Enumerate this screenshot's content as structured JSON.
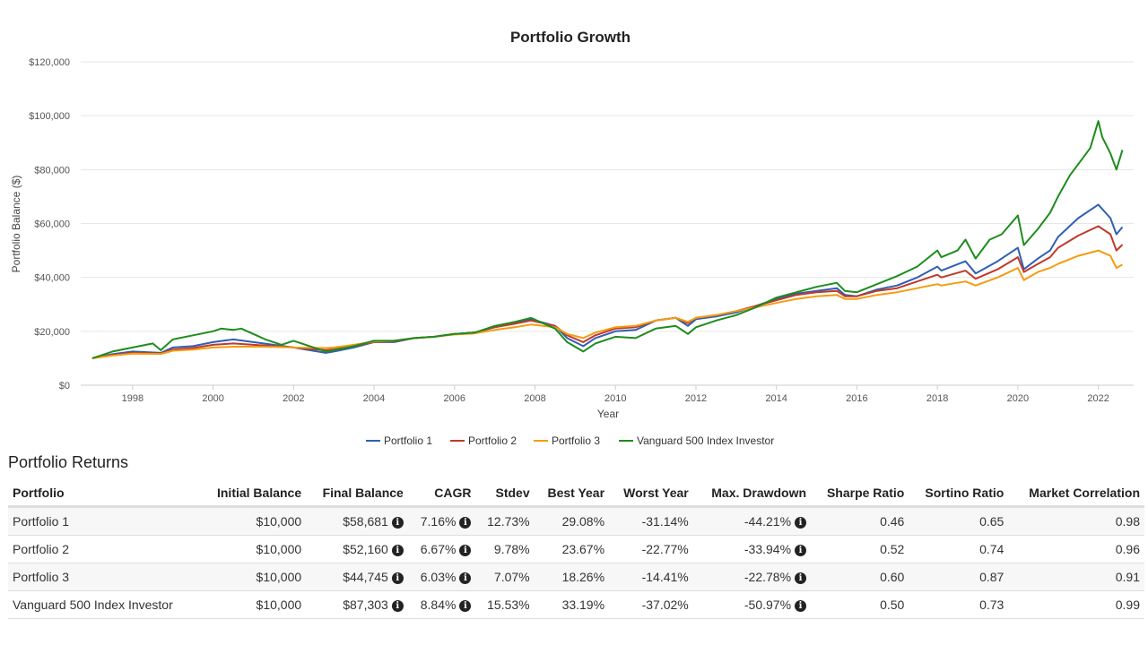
{
  "chart_data": {
    "type": "line",
    "title": "Portfolio Growth",
    "xlabel": "Year",
    "ylabel": "Portfolio Balance ($)",
    "xlim": [
      1997,
      2022.7
    ],
    "ylim": [
      0,
      120000
    ],
    "x_ticks": [
      1998,
      2000,
      2002,
      2004,
      2006,
      2008,
      2010,
      2012,
      2014,
      2016,
      2018,
      2020,
      2022
    ],
    "y_ticks": [
      0,
      20000,
      40000,
      60000,
      80000,
      100000,
      120000
    ],
    "y_tick_labels": [
      "$0",
      "$20,000",
      "$40,000",
      "$60,000",
      "$80,000",
      "$100,000",
      "$120,000"
    ],
    "grid": true,
    "legend_placement": "bottom",
    "series": [
      {
        "name": "Portfolio 1",
        "color": "#2f5fb3",
        "points": [
          [
            1997,
            10000
          ],
          [
            1997.5,
            11500
          ],
          [
            1998,
            12500
          ],
          [
            1998.7,
            12000
          ],
          [
            1999,
            14000
          ],
          [
            1999.5,
            14500
          ],
          [
            2000,
            16000
          ],
          [
            2000.5,
            17000
          ],
          [
            2001,
            16000
          ],
          [
            2001.5,
            15000
          ],
          [
            2002,
            14000
          ],
          [
            2002.8,
            12000
          ],
          [
            2003,
            12500
          ],
          [
            2003.5,
            14000
          ],
          [
            2004,
            16000
          ],
          [
            2004.5,
            16000
          ],
          [
            2005,
            17500
          ],
          [
            2005.5,
            18000
          ],
          [
            2006,
            19000
          ],
          [
            2006.5,
            19500
          ],
          [
            2007,
            21500
          ],
          [
            2007.5,
            23000
          ],
          [
            2007.9,
            24500
          ],
          [
            2008.5,
            22000
          ],
          [
            2008.8,
            17500
          ],
          [
            2009.2,
            14500
          ],
          [
            2009.5,
            17500
          ],
          [
            2010,
            20000
          ],
          [
            2010.5,
            20500
          ],
          [
            2011,
            24000
          ],
          [
            2011.5,
            25000
          ],
          [
            2011.8,
            22000
          ],
          [
            2012,
            24500
          ],
          [
            2012.5,
            25500
          ],
          [
            2013,
            27000
          ],
          [
            2013.5,
            29500
          ],
          [
            2014,
            32000
          ],
          [
            2014.5,
            34000
          ],
          [
            2015,
            35000
          ],
          [
            2015.5,
            36000
          ],
          [
            2015.7,
            33500
          ],
          [
            2016,
            33000
          ],
          [
            2016.5,
            35500
          ],
          [
            2017,
            37000
          ],
          [
            2017.5,
            40000
          ],
          [
            2018,
            44000
          ],
          [
            2018.1,
            42500
          ],
          [
            2018.7,
            46000
          ],
          [
            2018.95,
            41500
          ],
          [
            2019.5,
            46000
          ],
          [
            2020,
            51000
          ],
          [
            2020.15,
            43000
          ],
          [
            2020.5,
            47000
          ],
          [
            2020.8,
            50000
          ],
          [
            2021,
            55000
          ],
          [
            2021.5,
            62000
          ],
          [
            2022,
            67000
          ],
          [
            2022.3,
            62000
          ],
          [
            2022.45,
            56000
          ],
          [
            2022.6,
            58681
          ]
        ]
      },
      {
        "name": "Portfolio 2",
        "color": "#c0392b",
        "points": [
          [
            1997,
            10000
          ],
          [
            1997.5,
            11200
          ],
          [
            1998,
            12000
          ],
          [
            1998.7,
            11800
          ],
          [
            1999,
            13200
          ],
          [
            1999.5,
            13800
          ],
          [
            2000,
            15000
          ],
          [
            2000.5,
            15500
          ],
          [
            2001,
            15000
          ],
          [
            2001.5,
            14500
          ],
          [
            2002,
            14000
          ],
          [
            2002.8,
            13000
          ],
          [
            2003,
            13300
          ],
          [
            2003.5,
            14500
          ],
          [
            2004,
            16000
          ],
          [
            2004.5,
            16300
          ],
          [
            2005,
            17500
          ],
          [
            2005.5,
            18000
          ],
          [
            2006,
            19000
          ],
          [
            2006.5,
            19500
          ],
          [
            2007,
            21500
          ],
          [
            2007.5,
            22800
          ],
          [
            2007.9,
            24000
          ],
          [
            2008.5,
            22000
          ],
          [
            2008.8,
            18500
          ],
          [
            2009.2,
            16000
          ],
          [
            2009.5,
            18500
          ],
          [
            2010,
            21000
          ],
          [
            2010.5,
            21500
          ],
          [
            2011,
            24000
          ],
          [
            2011.5,
            25000
          ],
          [
            2011.8,
            23000
          ],
          [
            2012,
            25000
          ],
          [
            2012.5,
            26000
          ],
          [
            2013,
            27500
          ],
          [
            2013.5,
            29500
          ],
          [
            2014,
            31500
          ],
          [
            2014.5,
            33500
          ],
          [
            2015,
            34500
          ],
          [
            2015.5,
            35000
          ],
          [
            2015.7,
            33000
          ],
          [
            2016,
            33000
          ],
          [
            2016.5,
            35000
          ],
          [
            2017,
            36000
          ],
          [
            2017.5,
            38500
          ],
          [
            2018,
            41000
          ],
          [
            2018.1,
            40000
          ],
          [
            2018.7,
            42500
          ],
          [
            2018.95,
            39500
          ],
          [
            2019.5,
            43000
          ],
          [
            2020,
            47500
          ],
          [
            2020.15,
            42000
          ],
          [
            2020.5,
            45000
          ],
          [
            2020.8,
            47500
          ],
          [
            2021,
            51000
          ],
          [
            2021.5,
            55500
          ],
          [
            2022,
            59000
          ],
          [
            2022.3,
            56000
          ],
          [
            2022.45,
            50000
          ],
          [
            2022.6,
            52160
          ]
        ]
      },
      {
        "name": "Portfolio 3",
        "color": "#f39c12",
        "points": [
          [
            1997,
            10000
          ],
          [
            1997.5,
            11000
          ],
          [
            1998,
            11700
          ],
          [
            1998.7,
            11600
          ],
          [
            1999,
            12800
          ],
          [
            1999.5,
            13200
          ],
          [
            2000,
            14000
          ],
          [
            2000.5,
            14300
          ],
          [
            2001,
            14300
          ],
          [
            2001.5,
            14200
          ],
          [
            2002,
            14000
          ],
          [
            2002.8,
            13800
          ],
          [
            2003,
            14000
          ],
          [
            2003.5,
            15000
          ],
          [
            2004,
            16200
          ],
          [
            2004.5,
            16500
          ],
          [
            2005,
            17500
          ],
          [
            2005.5,
            18000
          ],
          [
            2006,
            18800
          ],
          [
            2006.5,
            19200
          ],
          [
            2007,
            20500
          ],
          [
            2007.5,
            21500
          ],
          [
            2007.9,
            22500
          ],
          [
            2008.5,
            21500
          ],
          [
            2008.8,
            19000
          ],
          [
            2009.2,
            17500
          ],
          [
            2009.5,
            19500
          ],
          [
            2010,
            21500
          ],
          [
            2010.5,
            22000
          ],
          [
            2011,
            24000
          ],
          [
            2011.5,
            25000
          ],
          [
            2011.8,
            23500
          ],
          [
            2012,
            25000
          ],
          [
            2012.5,
            26000
          ],
          [
            2013,
            27500
          ],
          [
            2013.5,
            29000
          ],
          [
            2014,
            30500
          ],
          [
            2014.5,
            32000
          ],
          [
            2015,
            33000
          ],
          [
            2015.5,
            33500
          ],
          [
            2015.7,
            32000
          ],
          [
            2016,
            32000
          ],
          [
            2016.5,
            33500
          ],
          [
            2017,
            34500
          ],
          [
            2017.5,
            36000
          ],
          [
            2018,
            37500
          ],
          [
            2018.1,
            37000
          ],
          [
            2018.7,
            38500
          ],
          [
            2018.95,
            37000
          ],
          [
            2019.5,
            40000
          ],
          [
            2020,
            43500
          ],
          [
            2020.15,
            39000
          ],
          [
            2020.5,
            42000
          ],
          [
            2020.8,
            43500
          ],
          [
            2021,
            45000
          ],
          [
            2021.5,
            48000
          ],
          [
            2022,
            50000
          ],
          [
            2022.3,
            48000
          ],
          [
            2022.45,
            43500
          ],
          [
            2022.6,
            44745
          ]
        ]
      },
      {
        "name": "Vanguard 500 Index Investor",
        "color": "#1e8c1e",
        "points": [
          [
            1997,
            10000
          ],
          [
            1997.5,
            12500
          ],
          [
            1998,
            14000
          ],
          [
            1998.5,
            15500
          ],
          [
            1998.7,
            13000
          ],
          [
            1999,
            17000
          ],
          [
            1999.5,
            18500
          ],
          [
            2000,
            20000
          ],
          [
            2000.2,
            21000
          ],
          [
            2000.5,
            20500
          ],
          [
            2000.7,
            21000
          ],
          [
            2001,
            19000
          ],
          [
            2001.3,
            17000
          ],
          [
            2001.7,
            15000
          ],
          [
            2002,
            16500
          ],
          [
            2002.5,
            14000
          ],
          [
            2002.8,
            12500
          ],
          [
            2003,
            13000
          ],
          [
            2003.5,
            14500
          ],
          [
            2004,
            16500
          ],
          [
            2004.5,
            16500
          ],
          [
            2005,
            17500
          ],
          [
            2005.5,
            18000
          ],
          [
            2006,
            19000
          ],
          [
            2006.5,
            19500
          ],
          [
            2007,
            22000
          ],
          [
            2007.5,
            23500
          ],
          [
            2007.9,
            25000
          ],
          [
            2008.5,
            21000
          ],
          [
            2008.8,
            16000
          ],
          [
            2009.2,
            12500
          ],
          [
            2009.5,
            15500
          ],
          [
            2010,
            18000
          ],
          [
            2010.5,
            17500
          ],
          [
            2011,
            21000
          ],
          [
            2011.5,
            22000
          ],
          [
            2011.8,
            19000
          ],
          [
            2012,
            21500
          ],
          [
            2012.5,
            24000
          ],
          [
            2013,
            26000
          ],
          [
            2013.5,
            29000
          ],
          [
            2014,
            32500
          ],
          [
            2014.5,
            34500
          ],
          [
            2015,
            36500
          ],
          [
            2015.5,
            38000
          ],
          [
            2015.7,
            35000
          ],
          [
            2016,
            34500
          ],
          [
            2016.5,
            37500
          ],
          [
            2017,
            40500
          ],
          [
            2017.5,
            44000
          ],
          [
            2018,
            50000
          ],
          [
            2018.1,
            47500
          ],
          [
            2018.5,
            50000
          ],
          [
            2018.7,
            54000
          ],
          [
            2018.95,
            47000
          ],
          [
            2019.3,
            54000
          ],
          [
            2019.6,
            56000
          ],
          [
            2020,
            63000
          ],
          [
            2020.15,
            52000
          ],
          [
            2020.5,
            58000
          ],
          [
            2020.8,
            64000
          ],
          [
            2021,
            70000
          ],
          [
            2021.3,
            78000
          ],
          [
            2021.5,
            82000
          ],
          [
            2021.8,
            88000
          ],
          [
            2022,
            98000
          ],
          [
            2022.1,
            92000
          ],
          [
            2022.3,
            86000
          ],
          [
            2022.45,
            80000
          ],
          [
            2022.6,
            87303
          ]
        ]
      }
    ]
  },
  "returns": {
    "title": "Portfolio Returns",
    "columns": [
      "Portfolio",
      "Initial Balance",
      "Final Balance",
      "CAGR",
      "Stdev",
      "Best Year",
      "Worst Year",
      "Max. Drawdown",
      "Sharpe Ratio",
      "Sortino Ratio",
      "Market Correlation"
    ],
    "info_icon": "info-circle-icon",
    "rows": [
      [
        "Portfolio 1",
        "$10,000",
        "$58,681",
        "7.16%",
        "12.73%",
        "29.08%",
        "-31.14%",
        "-44.21%",
        "0.46",
        "0.65",
        "0.98"
      ],
      [
        "Portfolio 2",
        "$10,000",
        "$52,160",
        "6.67%",
        "9.78%",
        "23.67%",
        "-22.77%",
        "-33.94%",
        "0.52",
        "0.74",
        "0.96"
      ],
      [
        "Portfolio 3",
        "$10,000",
        "$44,745",
        "6.03%",
        "7.07%",
        "18.26%",
        "-14.41%",
        "-22.78%",
        "0.60",
        "0.87",
        "0.91"
      ],
      [
        "Vanguard 500 Index Investor",
        "$10,000",
        "$87,303",
        "8.84%",
        "15.53%",
        "33.19%",
        "-37.02%",
        "-50.97%",
        "0.50",
        "0.73",
        "0.99"
      ]
    ]
  }
}
